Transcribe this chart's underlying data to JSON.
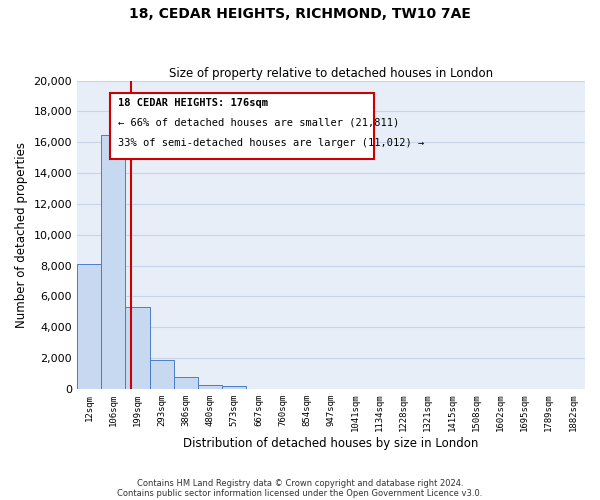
{
  "title": "18, CEDAR HEIGHTS, RICHMOND, TW10 7AE",
  "subtitle": "Size of property relative to detached houses in London",
  "xlabel": "Distribution of detached houses by size in London",
  "ylabel": "Number of detached properties",
  "categories": [
    "12sqm",
    "106sqm",
    "199sqm",
    "293sqm",
    "386sqm",
    "480sqm",
    "573sqm",
    "667sqm",
    "760sqm",
    "854sqm",
    "947sqm",
    "1041sqm",
    "1134sqm",
    "1228sqm",
    "1321sqm",
    "1415sqm",
    "1508sqm",
    "1602sqm",
    "1695sqm",
    "1789sqm",
    "1882sqm"
  ],
  "values": [
    8100,
    16500,
    5300,
    1850,
    750,
    280,
    220,
    0,
    0,
    0,
    0,
    0,
    0,
    0,
    0,
    0,
    0,
    0,
    0,
    0,
    0
  ],
  "bar_color": "#c6d9f1",
  "bar_edge_color": "#4a7cc7",
  "property_line_x": 1.75,
  "property_line_color": "#cc0000",
  "annotation_title": "18 CEDAR HEIGHTS: 176sqm",
  "annotation_line1": "← 66% of detached houses are smaller (21,811)",
  "annotation_line2": "33% of semi-detached houses are larger (11,012) →",
  "annotation_box_color": "#cc0000",
  "ylim": [
    0,
    20000
  ],
  "yticks": [
    0,
    2000,
    4000,
    6000,
    8000,
    10000,
    12000,
    14000,
    16000,
    18000,
    20000
  ],
  "grid_color": "#c8d4e8",
  "footnote1": "Contains HM Land Registry data © Crown copyright and database right 2024.",
  "footnote2": "Contains public sector information licensed under the Open Government Licence v3.0.",
  "figsize": [
    6.0,
    5.0
  ],
  "dpi": 100
}
